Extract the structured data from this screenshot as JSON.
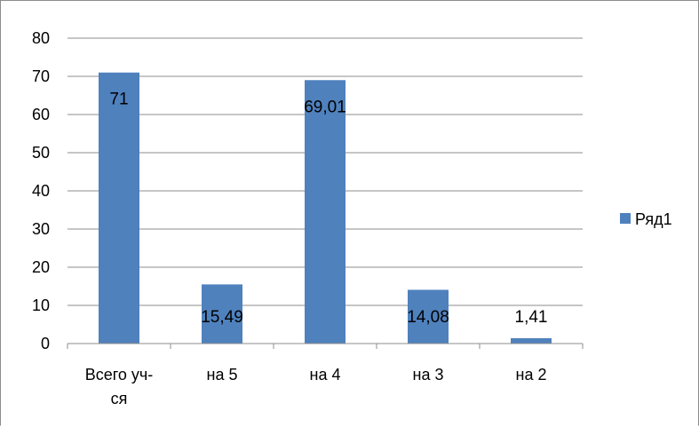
{
  "chart_data": {
    "type": "bar",
    "categories": [
      [
        "Всего уч-",
        "ся"
      ],
      [
        "на 5"
      ],
      [
        "на 4"
      ],
      [
        "на 3"
      ],
      [
        "на 2"
      ]
    ],
    "series": [
      {
        "name": "Ряд1",
        "values": [
          71,
          15.49,
          69.01,
          14.08,
          1.41
        ],
        "color": "#4f81bd"
      }
    ],
    "data_labels": [
      "71",
      "15,49",
      "69,01",
      "14,08",
      "1,41"
    ],
    "y_ticks": [
      "0",
      "10",
      "20",
      "30",
      "40",
      "50",
      "60",
      "70",
      "80"
    ],
    "ylim": [
      0,
      80
    ],
    "y_step": 10,
    "grid": true,
    "legend_position": "right",
    "title": "",
    "xlabel": "",
    "ylabel": ""
  }
}
